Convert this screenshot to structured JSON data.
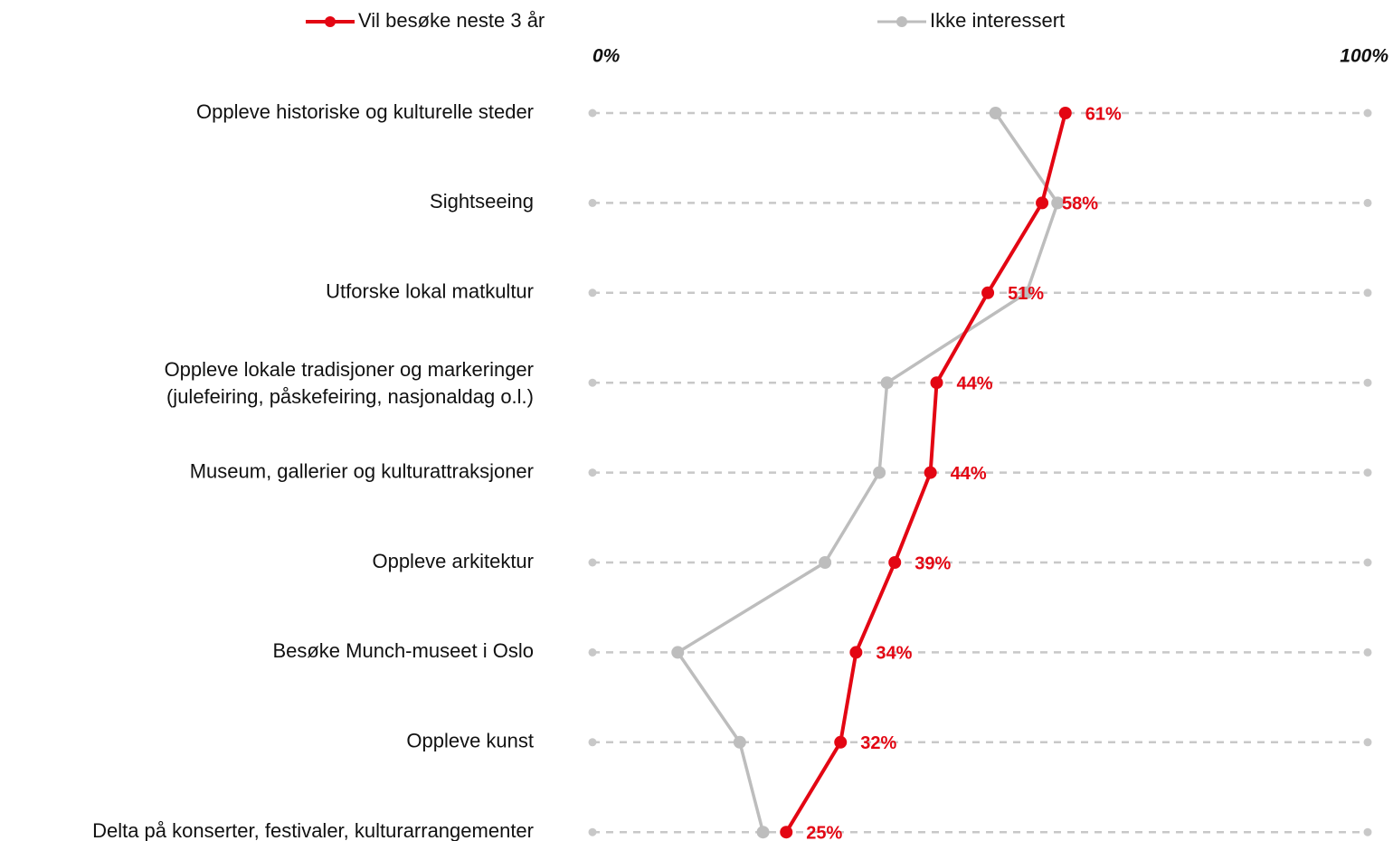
{
  "chart_data": {
    "type": "line",
    "orientation": "horizontal",
    "categories": [
      "Oppleve historiske og kulturelle steder",
      "Sightseeing",
      "Utforske lokal matkultur",
      [
        "Oppleve lokale tradisjoner og markeringer",
        "(julefeiring, påskefeiring, nasjonaldag o.l.)"
      ],
      "Museum, gallerier og kulturattraksjoner",
      "Oppleve arkitektur",
      "Besøke Munch-museet i Oslo",
      "Oppleve kunst",
      "Delta på konserter, festivaler, kulturarrangementer"
    ],
    "series": [
      {
        "name": "Vil besøke neste 3 år",
        "color": "#e30613",
        "values": [
          61,
          58,
          51,
          44.4,
          43.6,
          39,
          34,
          32,
          25
        ],
        "value_labels": [
          "61%",
          "58%",
          "51%",
          "44%",
          "44%",
          "39%",
          "34%",
          "32%",
          "25%"
        ]
      },
      {
        "name": "Ikke interessert",
        "color": "#bdbdbd",
        "values": [
          52,
          60,
          56,
          38,
          37,
          30,
          11,
          19,
          22
        ]
      }
    ],
    "xlim": [
      0,
      100
    ],
    "xticks": [
      {
        "value": 0,
        "label": "0%"
      },
      {
        "value": 100,
        "label": "100%"
      }
    ],
    "grid": true,
    "legend": "top"
  }
}
